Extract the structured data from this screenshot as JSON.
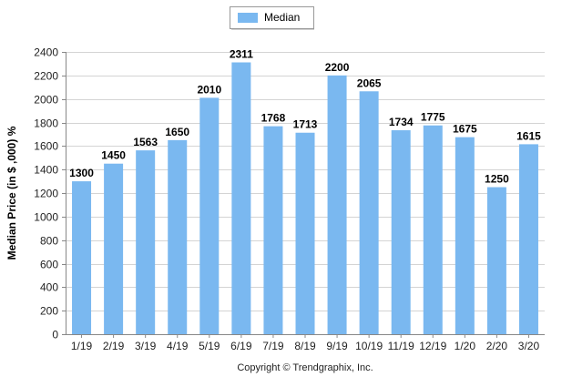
{
  "chart_data": {
    "type": "bar",
    "categories": [
      "1/19",
      "2/19",
      "3/19",
      "4/19",
      "5/19",
      "6/19",
      "7/19",
      "8/19",
      "9/19",
      "10/19",
      "11/19",
      "12/19",
      "1/20",
      "2/20",
      "3/20"
    ],
    "series": [
      {
        "name": "Median",
        "values": [
          1300,
          1450,
          1563,
          1650,
          2010,
          2311,
          1768,
          1713,
          2200,
          2065,
          1734,
          1775,
          1675,
          1250,
          1615
        ],
        "color": "#7ab8f0"
      }
    ],
    "ylabel": "Median Price (in $ ,000) %",
    "xlabel": "",
    "ylim": [
      0,
      2400
    ],
    "yticks": [
      0,
      200,
      400,
      600,
      800,
      1000,
      1200,
      1400,
      1600,
      1800,
      2000,
      2200,
      2400
    ],
    "grid": true,
    "legend_position": "top-center",
    "data_labels": true
  },
  "footer": {
    "copyright": "Copyright © Trendgraphix, Inc."
  },
  "colors": {
    "bar": "#7ab8f0",
    "grid": "#d4d4d4",
    "axis": "#888888"
  }
}
